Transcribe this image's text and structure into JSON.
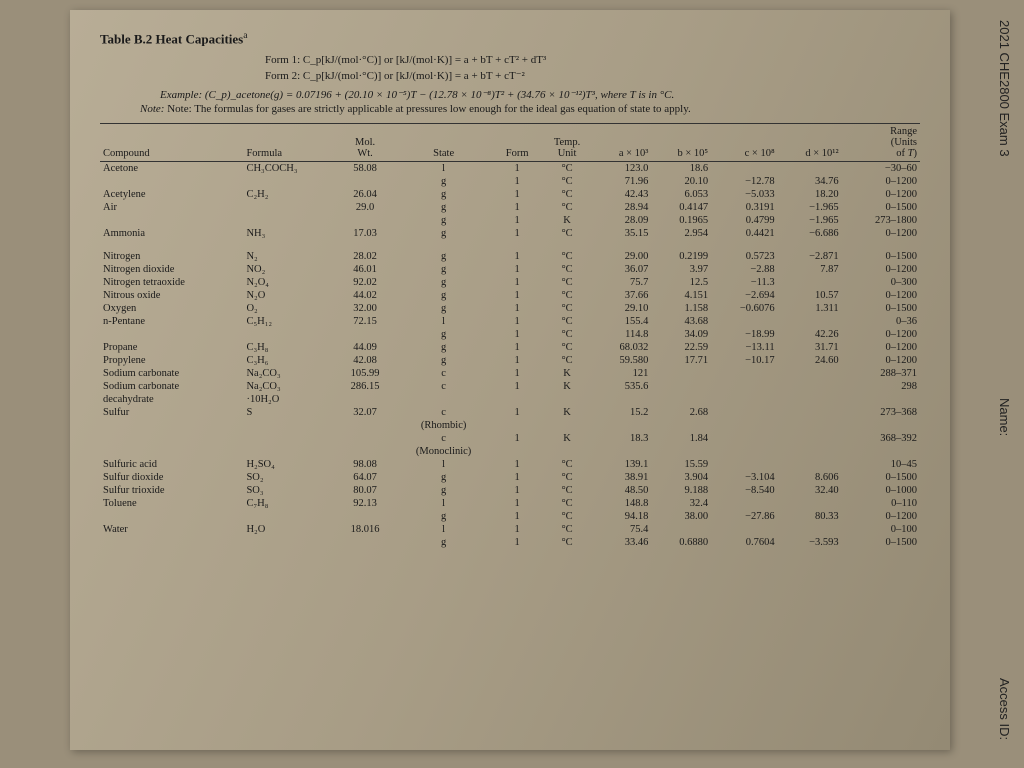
{
  "side": {
    "exam": "2021 CHE2800 Exam 3",
    "name": "Name:",
    "access": "Access ID:"
  },
  "title": "Table B.2  Heat Capacities",
  "form1": "Form 1: C_p[kJ/(mol·°C)] or [kJ/(mol·K)] = a + bT + cT² + dT³",
  "form2": "Form 2: C_p[kJ/(mol·°C)] or [kJ/(mol·K)] = a + bT + cT⁻²",
  "example": "Example: (C_p)_acetone(g) = 0.07196 + (20.10 × 10⁻⁵)T − (12.78 × 10⁻⁸)T² + (34.76 × 10⁻¹²)T³, where T is in °C.",
  "note": "Note: The formulas for gases are strictly applicable at pressures low enough for the ideal gas equation of state to apply.",
  "head": {
    "compound": "Compound",
    "formula": "Formula",
    "mw": "Mol.\nWt.",
    "state": "State",
    "form": "Form",
    "unit": "Temp.\nUnit",
    "a": "a × 10³",
    "b": "b × 10⁵",
    "c": "c × 10⁸",
    "d": "d × 10¹²",
    "range": "Range\n(Units\nof T)"
  },
  "rows": [
    [
      "Acetone",
      "CH₃COCH₃",
      "58.08",
      "l",
      "1",
      "°C",
      "123.0",
      "18.6",
      "",
      "",
      "−30–60"
    ],
    [
      "",
      "",
      "",
      "g",
      "1",
      "°C",
      "71.96",
      "20.10",
      "−12.78",
      "34.76",
      "0–1200"
    ],
    [
      "Acetylene",
      "C₂H₂",
      "26.04",
      "g",
      "1",
      "°C",
      "42.43",
      "6.053",
      "−5.033",
      "18.20",
      "0–1200"
    ],
    [
      "Air",
      "",
      "29.0",
      "g",
      "1",
      "°C",
      "28.94",
      "0.4147",
      "0.3191",
      "−1.965",
      "0–1500"
    ],
    [
      "",
      "",
      "",
      "g",
      "1",
      "K",
      "28.09",
      "0.1965",
      "0.4799",
      "−1.965",
      "273–1800"
    ],
    [
      "Ammonia",
      "NH₃",
      "17.03",
      "g",
      "1",
      "°C",
      "35.15",
      "2.954",
      "0.4421",
      "−6.686",
      "0–1200"
    ],
    [
      "GAP"
    ],
    [
      "Nitrogen",
      "N₂",
      "28.02",
      "g",
      "1",
      "°C",
      "29.00",
      "0.2199",
      "0.5723",
      "−2.871",
      "0–1500"
    ],
    [
      "Nitrogen dioxide",
      "NO₂",
      "46.01",
      "g",
      "1",
      "°C",
      "36.07",
      "3.97",
      "−2.88",
      "7.87",
      "0–1200"
    ],
    [
      "Nitrogen tetraoxide",
      "N₂O₄",
      "92.02",
      "g",
      "1",
      "°C",
      "75.7",
      "12.5",
      "−11.3",
      "",
      "0–300"
    ],
    [
      "Nitrous oxide",
      "N₂O",
      "44.02",
      "g",
      "1",
      "°C",
      "37.66",
      "4.151",
      "−2.694",
      "10.57",
      "0–1200"
    ],
    [
      "Oxygen",
      "O₂",
      "32.00",
      "g",
      "1",
      "°C",
      "29.10",
      "1.158",
      "−0.6076",
      "1.311",
      "0–1500"
    ],
    [
      "n-Pentane",
      "C₅H₁₂",
      "72.15",
      "l",
      "1",
      "°C",
      "155.4",
      "43.68",
      "",
      "",
      "0–36"
    ],
    [
      "",
      "",
      "",
      "g",
      "1",
      "°C",
      "114.8",
      "34.09",
      "−18.99",
      "42.26",
      "0–1200"
    ],
    [
      "Propane",
      "C₃H₈",
      "44.09",
      "g",
      "1",
      "°C",
      "68.032",
      "22.59",
      "−13.11",
      "31.71",
      "0–1200"
    ],
    [
      "Propylene",
      "C₃H₆",
      "42.08",
      "g",
      "1",
      "°C",
      "59.580",
      "17.71",
      "−10.17",
      "24.60",
      "0–1200"
    ],
    [
      "Sodium carbonate",
      "Na₂CO₃",
      "105.99",
      "c",
      "1",
      "K",
      "121",
      "",
      "",
      "",
      "288–371"
    ],
    [
      "Sodium carbonate",
      "Na₂CO₃",
      "286.15",
      "c",
      "1",
      "K",
      "535.6",
      "",
      "",
      "",
      "298"
    ],
    [
      "  decahydrate",
      "·10H₂O",
      "",
      "",
      "",
      "",
      "",
      "",
      "",
      "",
      ""
    ],
    [
      "Sulfur",
      "S",
      "32.07",
      "c",
      "1",
      "K",
      "15.2",
      "2.68",
      "",
      "",
      "273–368"
    ],
    [
      "",
      "",
      "",
      "(Rhombic)",
      "",
      "",
      "",
      "",
      "",
      "",
      ""
    ],
    [
      "",
      "",
      "",
      "c",
      "1",
      "K",
      "18.3",
      "1.84",
      "",
      "",
      "368–392"
    ],
    [
      "",
      "",
      "",
      "(Monoclinic)",
      "",
      "",
      "",
      "",
      "",
      "",
      ""
    ],
    [
      "Sulfuric acid",
      "H₂SO₄",
      "98.08",
      "l",
      "1",
      "°C",
      "139.1",
      "15.59",
      "",
      "",
      "10–45"
    ],
    [
      "Sulfur dioxide",
      "SO₂",
      "64.07",
      "g",
      "1",
      "°C",
      "38.91",
      "3.904",
      "−3.104",
      "8.606",
      "0–1500"
    ],
    [
      "Sulfur trioxide",
      "SO₃",
      "80.07",
      "g",
      "1",
      "°C",
      "48.50",
      "9.188",
      "−8.540",
      "32.40",
      "0–1000"
    ],
    [
      "Toluene",
      "C₇H₈",
      "92.13",
      "l",
      "1",
      "°C",
      "148.8",
      "32.4",
      "",
      "",
      "0–110"
    ],
    [
      "",
      "",
      "",
      "g",
      "1",
      "°C",
      "94.18",
      "38.00",
      "−27.86",
      "80.33",
      "0–1200"
    ],
    [
      "Water",
      "H₂O",
      "18.016",
      "l",
      "1",
      "°C",
      "75.4",
      "",
      "",
      "",
      "0–100"
    ],
    [
      "",
      "",
      "",
      "g",
      "1",
      "°C",
      "33.46",
      "0.6880",
      "0.7604",
      "−3.593",
      "0–1500"
    ]
  ]
}
